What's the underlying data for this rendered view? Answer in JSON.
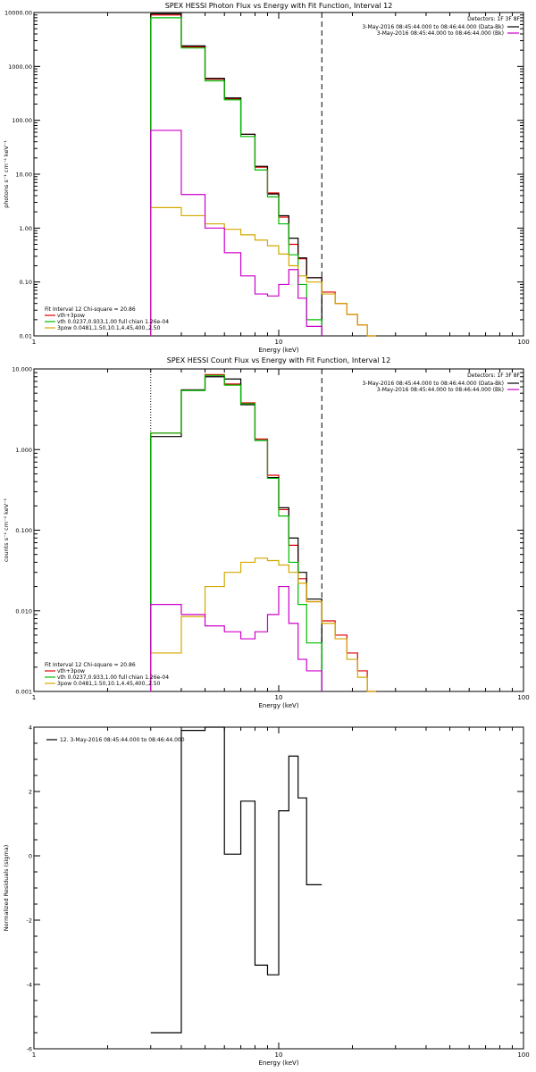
{
  "chart_data": [
    {
      "type": "line",
      "title": "SPEX HESSI Photon Flux vs Energy with Fit Function, Interval 12",
      "xlabel": "Energy (keV)",
      "ylabel": "photons s⁻¹ cm⁻² keV⁻¹",
      "xscale": "log",
      "yscale": "log",
      "xlim": [
        1,
        100
      ],
      "ylim": [
        0.01,
        10000
      ],
      "x_tick_labels": [
        "1",
        "10",
        "100"
      ],
      "y_tick_labels": [
        "0.01",
        "0.10",
        "1.00",
        "10.00",
        "100.00",
        "1000.00",
        "10000.00"
      ],
      "y_tick_values": [
        0.01,
        0.1,
        1,
        10,
        100,
        1000,
        10000
      ],
      "x_tick_values": [
        1,
        10,
        100
      ],
      "grid": false,
      "legend_top_right": {
        "detectors": "Detectors: 1F 3F 8F",
        "entries": [
          {
            "text": "3-May-2016 08:45:44.000 to 08:46:44.000 (Data-Bk)",
            "color": "#000000"
          },
          {
            "text": "3-May-2016 08:45:44.000 to 08:46:44.000 (Bk)",
            "color": "#cc00cc"
          }
        ]
      },
      "legend_bottom_left": {
        "header": "Fit Interval 12    Chi-square = 20.86",
        "entries": [
          {
            "text": "vth+3pow",
            "color": "#dd0000"
          },
          {
            "text": "vth 0.0237,0.933,1.00  full chian 1.26e-04",
            "color": "#00bb00"
          },
          {
            "text": "3pow 0.0481,1.50,10.1,4.45,400.,2.50",
            "color": "#d4a800"
          }
        ]
      },
      "vertical_lines": [
        {
          "x": 3.0,
          "color": "#d4a800",
          "style": "dotted"
        },
        {
          "x": 15.0,
          "color": "#000000",
          "style": "dashed"
        }
      ],
      "bin_edges": [
        3.0,
        4.0,
        5.0,
        6.0,
        7.0,
        8.0,
        9.0,
        10.0,
        11.0,
        12.0,
        13.0,
        15.0,
        17.0,
        19.0,
        21.0,
        23.0,
        25.0
      ],
      "series": [
        {
          "name": "vth+3pow",
          "color": "#dd0000",
          "values": [
            9000,
            2300,
            580,
            250,
            55,
            13.5,
            4.5,
            1.6,
            0.5,
            0.27,
            0.12,
            0.065,
            0.04,
            0.025,
            0.016,
            0.01
          ]
        },
        {
          "name": "Data-Bk",
          "color": "#000000",
          "values": [
            9500,
            2400,
            600,
            260,
            55,
            14,
            4.3,
            1.7,
            0.65,
            0.28,
            0.12,
            null,
            null,
            null,
            null,
            null
          ]
        },
        {
          "name": "vth",
          "color": "#00bb00",
          "values": [
            8000,
            2200,
            540,
            240,
            50,
            12,
            3.8,
            1.2,
            0.32,
            0.09,
            0.02,
            null,
            null,
            null,
            null,
            null
          ]
        },
        {
          "name": "3pow",
          "color": "#d4a800",
          "values": [
            2.4,
            1.7,
            1.2,
            0.95,
            0.75,
            0.6,
            0.47,
            0.33,
            0.2,
            0.13,
            0.1,
            0.06,
            0.04,
            0.025,
            0.016,
            0.01
          ]
        },
        {
          "name": "Bk",
          "color": "#cc00cc",
          "values": [
            65,
            4.2,
            1.0,
            0.35,
            0.13,
            0.06,
            0.055,
            0.09,
            0.17,
            0.05,
            0.015,
            null,
            null,
            null,
            null,
            null
          ]
        }
      ]
    },
    {
      "type": "line",
      "title": "SPEX HESSI Count Flux vs Energy with Fit Function, Interval 12",
      "xlabel": "Energy (keV)",
      "ylabel": "counts s⁻¹ cm⁻² keV⁻¹",
      "xscale": "log",
      "yscale": "log",
      "xlim": [
        1,
        100
      ],
      "ylim": [
        0.001,
        10
      ],
      "x_tick_labels": [
        "1",
        "10",
        "100"
      ],
      "y_tick_labels": [
        "0.001",
        "0.010",
        "0.100",
        "1.000",
        "10.000"
      ],
      "y_tick_values": [
        0.001,
        0.01,
        0.1,
        1,
        10
      ],
      "x_tick_values": [
        1,
        10,
        100
      ],
      "grid": false,
      "legend_top_right": {
        "detectors": "Detectors: 1F 3F 8F",
        "entries": [
          {
            "text": "3-May-2016 08:45:44.000 to 08:46:44.000 (Data-Bk)",
            "color": "#000000"
          },
          {
            "text": "3-May-2016 08:45:44.000 to 08:46:44.000 (Bk)",
            "color": "#cc00cc"
          }
        ]
      },
      "legend_bottom_left": {
        "header": "Fit Interval 12    Chi-square = 20.86",
        "entries": [
          {
            "text": "vth+3pow",
            "color": "#dd0000"
          },
          {
            "text": "vth 0.0237,0.933,1.00  full chian 1.26e-04",
            "color": "#00bb00"
          },
          {
            "text": "3pow 0.0481,1.50,10.1,4.45,400.,2.50",
            "color": "#d4a800"
          }
        ]
      },
      "vertical_lines": [
        {
          "x": 3.0,
          "color": "#000000",
          "style": "dotted"
        },
        {
          "x": 15.0,
          "color": "#000000",
          "style": "dashed"
        }
      ],
      "bin_edges": [
        3.0,
        4.0,
        5.0,
        6.0,
        7.0,
        8.0,
        9.0,
        10.0,
        11.0,
        12.0,
        13.0,
        15.0,
        17.0,
        19.0,
        21.0,
        23.0,
        25.0
      ],
      "series": [
        {
          "name": "vth+3pow",
          "color": "#dd0000",
          "values": [
            1.6,
            5.5,
            8.5,
            6.5,
            3.8,
            1.35,
            0.48,
            0.18,
            0.065,
            0.025,
            0.013,
            0.0075,
            0.005,
            0.003,
            0.0018,
            0.001
          ]
        },
        {
          "name": "Data-Bk",
          "color": "#000000",
          "values": [
            1.45,
            5.5,
            8.0,
            7.5,
            3.6,
            1.3,
            0.45,
            0.19,
            0.08,
            0.03,
            0.014,
            null,
            null,
            null,
            null,
            null
          ]
        },
        {
          "name": "vth",
          "color": "#00bb00",
          "values": [
            1.6,
            5.4,
            8.3,
            6.3,
            3.7,
            1.3,
            0.44,
            0.15,
            0.04,
            0.012,
            0.004,
            null,
            null,
            null,
            null,
            null
          ]
        },
        {
          "name": "3pow",
          "color": "#d4a800",
          "values": [
            0.003,
            0.0085,
            0.02,
            0.03,
            0.04,
            0.045,
            0.042,
            0.037,
            0.03,
            0.022,
            0.013,
            0.007,
            0.0045,
            0.0025,
            0.0015,
            0.001
          ]
        },
        {
          "name": "Bk",
          "color": "#cc00cc",
          "values": [
            0.012,
            0.009,
            0.0065,
            0.0055,
            0.0045,
            0.0055,
            0.009,
            0.02,
            0.007,
            0.0025,
            0.0018,
            null,
            null,
            null,
            null,
            null
          ]
        }
      ]
    },
    {
      "type": "line",
      "title": "",
      "xlabel": "Energy (keV)",
      "ylabel": "Normalized Residuals (sigma)",
      "xscale": "log",
      "yscale": "linear",
      "xlim": [
        1,
        100
      ],
      "ylim": [
        -6,
        4
      ],
      "x_tick_labels": [
        "1",
        "10",
        "100"
      ],
      "x_tick_values": [
        1,
        10,
        100
      ],
      "y_tick_labels": [
        "-6",
        "-4",
        "-2",
        "0",
        "2",
        "4"
      ],
      "y_tick_values": [
        -6,
        -4,
        -2,
        0,
        2,
        4
      ],
      "grid": false,
      "legend_top_left": {
        "entries": [
          {
            "text": "12.  3-May-2016 08:45:44.000 to 08:46:44.000",
            "color": "#000000"
          }
        ]
      },
      "bin_edges": [
        3.0,
        4.0,
        5.0,
        6.0,
        7.0,
        8.0,
        9.0,
        10.0,
        11.0,
        12.0,
        13.0,
        15.0
      ],
      "series": [
        {
          "name": "residuals",
          "color": "#000000",
          "values": [
            -5.5,
            3.9,
            4.0,
            0.05,
            1.7,
            -3.4,
            -3.7,
            1.4,
            3.1,
            1.8,
            -0.9
          ]
        }
      ]
    }
  ]
}
